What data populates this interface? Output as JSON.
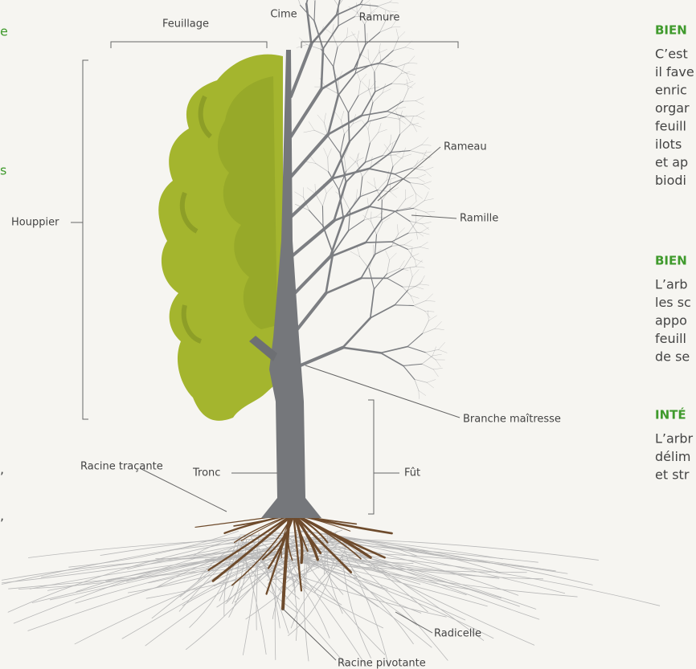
{
  "labels": {
    "feuillage": "Feuillage",
    "cime": "Cime",
    "ramure": "Ramure",
    "rameau": "Rameau",
    "ramille": "Ramille",
    "houppier": "Houppier",
    "branche_maitresse": "Branche maîtresse",
    "tronc": "Tronc",
    "fut": "Fût",
    "racine_tracante": "Racine traçante",
    "radicelle": "Radicelle",
    "racine_pivotante": "Racine pivotante"
  },
  "left_fragments": [
    "e",
    "s",
    ",",
    ","
  ],
  "right_column": [
    {
      "heading": "BIEN",
      "lines": [
        "C’est",
        "il fave",
        "enric",
        "orgar",
        "feuill",
        "ilots",
        "et ap",
        "biodi"
      ]
    },
    {
      "heading": "BIEN",
      "lines": [
        "L’arb",
        "les sc",
        "appo",
        "feuill",
        "de se"
      ]
    },
    {
      "heading": "INTÉ",
      "lines": [
        "L’arbr",
        "délim",
        "et str"
      ]
    }
  ]
}
